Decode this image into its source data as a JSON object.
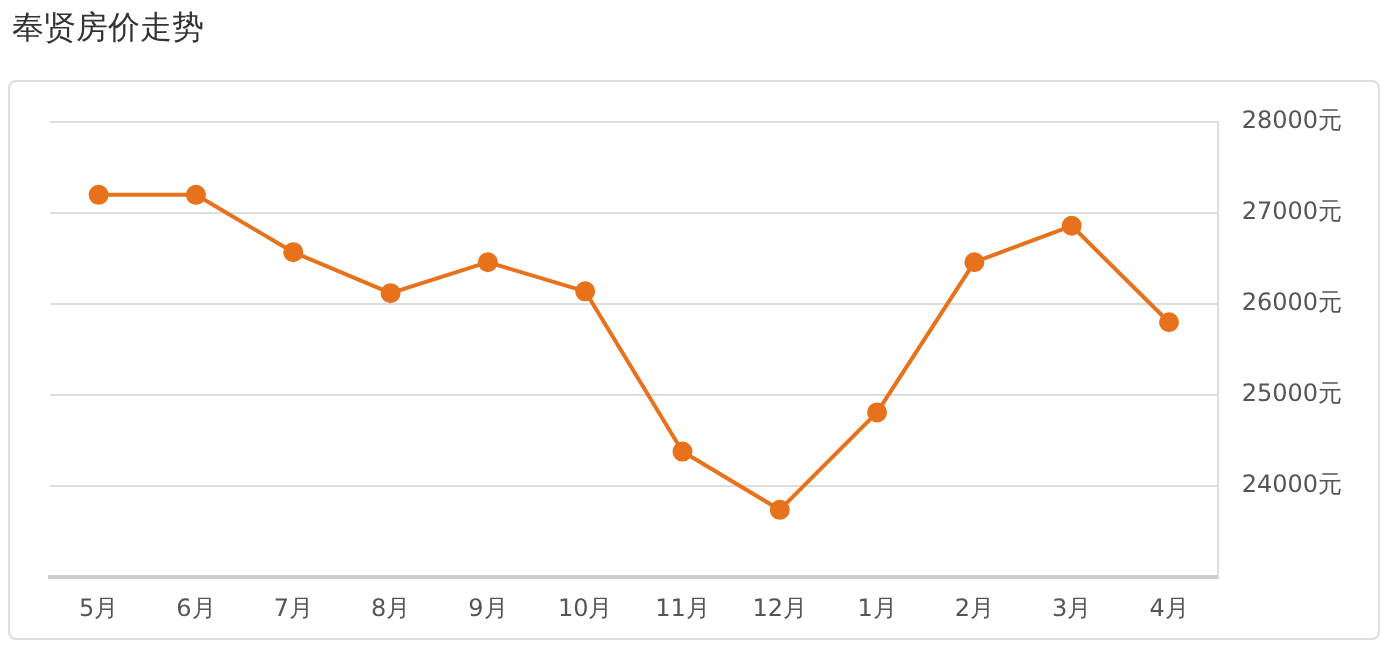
{
  "chart_data": {
    "type": "line",
    "title": "奉贤房价走势",
    "categories": [
      "5月",
      "6月",
      "7月",
      "8月",
      "9月",
      "10月",
      "11月",
      "12月",
      "1月",
      "2月",
      "3月",
      "4月"
    ],
    "values": [
      27200,
      27200,
      26570,
      26120,
      26460,
      26140,
      24380,
      23740,
      24810,
      26460,
      26860,
      25800
    ],
    "color": "#e8711c",
    "marker": "circle",
    "grid": "y",
    "legend": false,
    "ylim": [
      23000,
      28000
    ],
    "yticks": [
      {
        "value": 24000,
        "label": "24000元"
      },
      {
        "value": 25000,
        "label": "25000元"
      },
      {
        "value": 26000,
        "label": "26000元"
      },
      {
        "value": 27000,
        "label": "27000元"
      },
      {
        "value": 28000,
        "label": "28000元"
      }
    ]
  }
}
